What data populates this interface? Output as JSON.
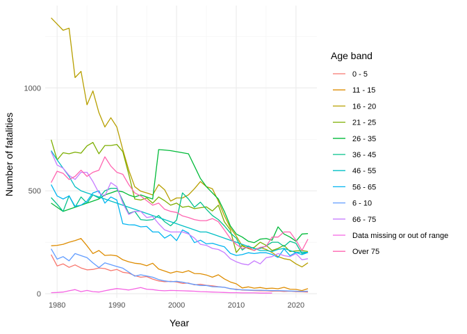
{
  "chart_data": {
    "type": "line",
    "title": "",
    "xlabel": "Year",
    "ylabel": "Number of fatalities",
    "xlim": [
      1978,
      2023.5
    ],
    "ylim": [
      -20,
      1400
    ],
    "x_ticks": [
      1980,
      1990,
      2000,
      2010,
      2020
    ],
    "y_ticks": [
      0,
      500,
      1000
    ],
    "grid": true,
    "legend": {
      "title": "Age band",
      "position": "right"
    },
    "x": [
      1979,
      1980,
      1981,
      1982,
      1983,
      1984,
      1985,
      1986,
      1987,
      1988,
      1989,
      1990,
      1991,
      1992,
      1993,
      1994,
      1995,
      1996,
      1997,
      1998,
      1999,
      2000,
      2001,
      2002,
      2003,
      2004,
      2005,
      2006,
      2007,
      2008,
      2009,
      2010,
      2011,
      2012,
      2013,
      2014,
      2015,
      2016,
      2017,
      2018,
      2019,
      2020,
      2021,
      2022
    ],
    "series": [
      {
        "name": "0 - 5",
        "color": "#F8766D",
        "values": [
          190,
          135,
          145,
          128,
          140,
          125,
          116,
          118,
          125,
          122,
          112,
          118,
          104,
          100,
          88,
          80,
          83,
          71,
          62,
          58,
          60,
          57,
          50,
          52,
          43,
          46,
          41,
          38,
          34,
          31,
          24,
          22,
          18,
          17,
          15,
          14,
          14,
          12,
          13,
          11,
          12,
          10,
          9,
          8
        ]
      },
      {
        "name": "11 - 15",
        "color": "#DE8C00",
        "values": [
          233,
          235,
          240,
          250,
          258,
          268,
          233,
          195,
          210,
          186,
          188,
          184,
          165,
          155,
          148,
          145,
          136,
          148,
          120,
          110,
          100,
          108,
          103,
          112,
          98,
          97,
          91,
          80,
          92,
          72,
          57,
          48,
          28,
          33,
          27,
          30,
          25,
          27,
          24,
          31,
          22,
          21,
          15,
          25
        ]
      },
      {
        "name": "16 - 20",
        "color": "#B79F00",
        "values": [
          1340,
          1310,
          1280,
          1290,
          1050,
          1080,
          918,
          985,
          880,
          810,
          855,
          810,
          700,
          600,
          520,
          498,
          490,
          480,
          530,
          505,
          450,
          465,
          465,
          480,
          510,
          545,
          520,
          510,
          450,
          380,
          320,
          280,
          232,
          220,
          210,
          225,
          215,
          200,
          180,
          170,
          165,
          145,
          130,
          150
        ]
      },
      {
        "name": "21 - 25",
        "color": "#7CAE00",
        "values": [
          748,
          650,
          685,
          680,
          688,
          683,
          718,
          735,
          680,
          720,
          720,
          725,
          690,
          580,
          460,
          455,
          465,
          440,
          470,
          452,
          430,
          440,
          420,
          425,
          413,
          418,
          422,
          402,
          430,
          350,
          310,
          200,
          235,
          220,
          225,
          250,
          235,
          210,
          220,
          235,
          205,
          208,
          210,
          205
        ]
      },
      {
        "name": "26 - 35",
        "color": "#00BA38",
        "values": [
          440,
          420,
          400,
          410,
          420,
          430,
          440,
          450,
          460,
          480,
          490,
          500,
          495,
          480,
          470,
          480,
          470,
          460,
          700,
          698,
          695,
          690,
          685,
          680,
          620,
          560,
          520,
          490,
          460,
          400,
          330,
          290,
          275,
          255,
          248,
          265,
          268,
          260,
          325,
          290,
          275,
          255,
          290,
          292
        ]
      },
      {
        "name": "36 - 45",
        "color": "#00C08B",
        "values": [
          467,
          435,
          400,
          476,
          420,
          470,
          440,
          480,
          465,
          500,
          512,
          512,
          452,
          390,
          400,
          360,
          357,
          360,
          380,
          350,
          330,
          358,
          490,
          460,
          420,
          445,
          410,
          380,
          360,
          330,
          295,
          270,
          212,
          232,
          218,
          220,
          232,
          250,
          250,
          230,
          255,
          245,
          195,
          200
        ]
      },
      {
        "name": "46 - 55",
        "color": "#00BFC4",
        "values": [
          695,
          650,
          610,
          570,
          520,
          500,
          490,
          480,
          470,
          460,
          450,
          440,
          430,
          420,
          410,
          400,
          390,
          380,
          370,
          360,
          350,
          340,
          330,
          320,
          310,
          300,
          300,
          290,
          280,
          270,
          260,
          250,
          240,
          230,
          220,
          210,
          210,
          205,
          215,
          220,
          210,
          200,
          202,
          200
        ]
      },
      {
        "name": "56 - 65",
        "color": "#00B4F0",
        "values": [
          530,
          475,
          460,
          475,
          425,
          430,
          450,
          490,
          500,
          440,
          470,
          455,
          340,
          335,
          334,
          325,
          327,
          300,
          300,
          270,
          287,
          258,
          310,
          295,
          248,
          260,
          242,
          245,
          236,
          228,
          196,
          186,
          190,
          199,
          195,
          199,
          199,
          191,
          176,
          218,
          185,
          200,
          190,
          200
        ]
      },
      {
        "name": "6 - 10",
        "color": "#619CFF",
        "values": [
          218,
          168,
          180,
          160,
          195,
          185,
          175,
          150,
          127,
          150,
          141,
          132,
          124,
          105,
          85,
          92,
          86,
          80,
          69,
          62,
          58,
          60,
          56,
          50,
          45,
          40,
          40,
          34,
          33,
          31,
          25,
          20,
          19,
          18,
          17,
          17,
          16,
          15,
          15,
          14,
          13,
          12,
          11,
          12
        ]
      },
      {
        "name": "66 - 75",
        "color": "#C77CFF",
        "values": [
          690,
          625,
          610,
          575,
          555,
          590,
          590,
          545,
          490,
          475,
          540,
          520,
          440,
          385,
          400,
          400,
          370,
          375,
          340,
          310,
          300,
          300,
          300,
          290,
          270,
          240,
          235,
          220,
          215,
          200,
          170,
          155,
          145,
          140,
          160,
          145,
          175,
          180,
          195,
          185,
          180,
          195,
          165,
          170
        ]
      },
      {
        "name": "Data missing or out of range",
        "color": "#F564E3",
        "values": [
          5,
          6,
          8,
          14,
          20,
          10,
          16,
          10,
          8,
          14,
          20,
          25,
          22,
          18,
          24,
          30,
          22,
          20,
          16,
          14,
          16,
          15,
          14,
          13,
          12,
          10,
          9,
          8,
          7,
          6,
          5,
          5,
          4,
          4,
          4,
          3,
          3,
          3,
          null,
          null,
          null,
          null,
          null,
          null
        ]
      },
      {
        "name": "Over 75",
        "color": "#FF64B0",
        "values": [
          540,
          595,
          585,
          555,
          570,
          600,
          570,
          590,
          600,
          665,
          620,
          590,
          580,
          530,
          490,
          475,
          452,
          430,
          440,
          410,
          400,
          395,
          378,
          370,
          360,
          355,
          355,
          365,
          350,
          310,
          268,
          240,
          220,
          225,
          210,
          225,
          230,
          275,
          275,
          300,
          300,
          260,
          210,
          265
        ]
      }
    ]
  }
}
